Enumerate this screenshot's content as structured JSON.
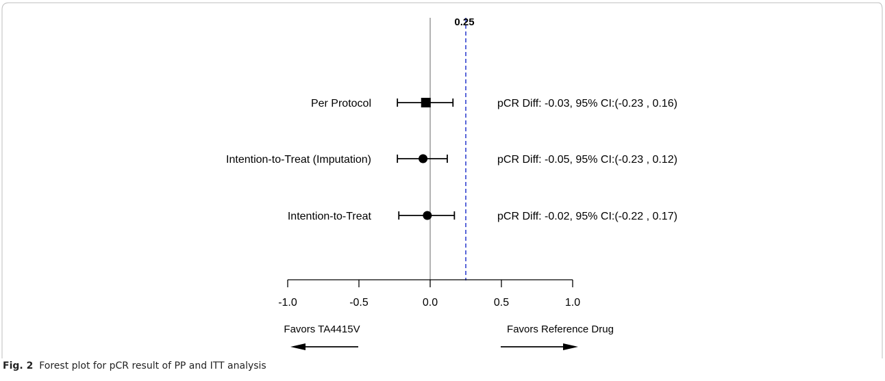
{
  "chart_data": {
    "type": "forest",
    "reference_value": 0.25,
    "reference_label": "0.25",
    "xlim": [
      -1.0,
      1.0
    ],
    "xticks": [
      -1.0,
      -0.5,
      0.0,
      0.5,
      1.0
    ],
    "xtick_labels": [
      "-1.0",
      "-0.5",
      "0.0",
      "0.5",
      "1.0"
    ],
    "rows": [
      {
        "label": "Per Protocol",
        "estimate": -0.03,
        "lower": -0.23,
        "upper": 0.16,
        "marker": "square",
        "annotation": "pCR Diff: -0.03, 95% CI:(-0.23 , 0.16)"
      },
      {
        "label": "Intention-to-Treat (Imputation)",
        "estimate": -0.05,
        "lower": -0.23,
        "upper": 0.12,
        "marker": "circle",
        "annotation": "pCR Diff: -0.05, 95% CI:(-0.23 , 0.12)"
      },
      {
        "label": "Intention-to-Treat",
        "estimate": -0.02,
        "lower": -0.22,
        "upper": 0.17,
        "marker": "circle",
        "annotation": "pCR Diff: -0.02, 95% CI:(-0.22 , 0.17)"
      }
    ],
    "favors_left": "Favors TA4415V",
    "favors_right": "Favors Reference Drug",
    "colors": {
      "reference_line": "#2233cc",
      "null_line": "#999999",
      "ink": "#000000"
    }
  },
  "caption": {
    "label": "Fig. 2",
    "text": "Forest plot for pCR result of PP and ITT analysis"
  }
}
